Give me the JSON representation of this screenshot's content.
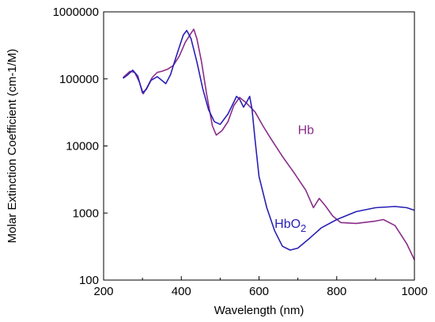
{
  "chart_data": {
    "type": "line",
    "xlabel": "Wavelength (nm)",
    "ylabel": "Molar Extinction Coefficient (cm-1/M)",
    "xlim": [
      200,
      1000
    ],
    "ylim": [
      100,
      1000000
    ],
    "yscale": "log",
    "grid": false,
    "legend": "inline labels",
    "x_ticks": [
      "200",
      "400",
      "600",
      "800",
      "1000"
    ],
    "y_ticks": [
      "100",
      "1000",
      "10000",
      "100000",
      "1000000"
    ],
    "series": [
      {
        "name": "Hb",
        "color": "#8a2d8a",
        "label_position": [
          700,
          15000
        ],
        "points": [
          [
            250,
            105000
          ],
          [
            268,
            130000
          ],
          [
            280,
            125000
          ],
          [
            292,
            90000
          ],
          [
            302,
            60000
          ],
          [
            312,
            75000
          ],
          [
            325,
            105000
          ],
          [
            338,
            125000
          ],
          [
            350,
            130000
          ],
          [
            365,
            140000
          ],
          [
            380,
            160000
          ],
          [
            395,
            220000
          ],
          [
            410,
            350000
          ],
          [
            425,
            480000
          ],
          [
            432,
            550000
          ],
          [
            440,
            400000
          ],
          [
            452,
            180000
          ],
          [
            465,
            60000
          ],
          [
            480,
            20000
          ],
          [
            490,
            14500
          ],
          [
            505,
            17000
          ],
          [
            520,
            23000
          ],
          [
            535,
            40000
          ],
          [
            550,
            53000
          ],
          [
            565,
            45000
          ],
          [
            578,
            38000
          ],
          [
            590,
            32000
          ],
          [
            610,
            20000
          ],
          [
            630,
            13000
          ],
          [
            660,
            7000
          ],
          [
            690,
            4000
          ],
          [
            720,
            2200
          ],
          [
            740,
            1200
          ],
          [
            755,
            1650
          ],
          [
            770,
            1300
          ],
          [
            790,
            900
          ],
          [
            810,
            720
          ],
          [
            850,
            700
          ],
          [
            900,
            760
          ],
          [
            920,
            800
          ],
          [
            950,
            650
          ],
          [
            980,
            350
          ],
          [
            1000,
            200
          ]
        ]
      },
      {
        "name": "HbO2",
        "name_parts": [
          "HbO",
          "2"
        ],
        "color": "#2a1fb5",
        "label_position": [
          640,
          600
        ],
        "points": [
          [
            250,
            102000
          ],
          [
            262,
            115000
          ],
          [
            275,
            135000
          ],
          [
            288,
            110000
          ],
          [
            300,
            62000
          ],
          [
            310,
            70000
          ],
          [
            322,
            95000
          ],
          [
            338,
            108000
          ],
          [
            350,
            95000
          ],
          [
            360,
            85000
          ],
          [
            372,
            115000
          ],
          [
            385,
            200000
          ],
          [
            395,
            300000
          ],
          [
            405,
            450000
          ],
          [
            414,
            528000
          ],
          [
            425,
            400000
          ],
          [
            440,
            180000
          ],
          [
            455,
            72000
          ],
          [
            470,
            35000
          ],
          [
            485,
            23000
          ],
          [
            500,
            21000
          ],
          [
            520,
            30000
          ],
          [
            535,
            45000
          ],
          [
            542,
            55000
          ],
          [
            550,
            50000
          ],
          [
            560,
            38000
          ],
          [
            568,
            45000
          ],
          [
            576,
            55000
          ],
          [
            582,
            35000
          ],
          [
            590,
            12000
          ],
          [
            600,
            3500
          ],
          [
            620,
            1200
          ],
          [
            640,
            550
          ],
          [
            660,
            320
          ],
          [
            680,
            280
          ],
          [
            700,
            300
          ],
          [
            730,
            420
          ],
          [
            760,
            600
          ],
          [
            800,
            800
          ],
          [
            850,
            1050
          ],
          [
            900,
            1200
          ],
          [
            950,
            1250
          ],
          [
            980,
            1200
          ],
          [
            1000,
            1100
          ]
        ]
      }
    ]
  }
}
